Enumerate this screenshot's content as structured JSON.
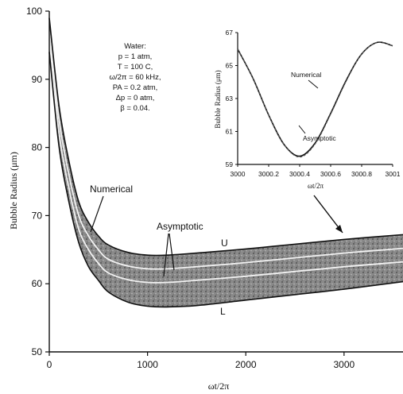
{
  "chart_data": [
    {
      "type": "line",
      "xlabel": "ωt/2π",
      "ylabel": "Bubble Radius (μm)",
      "xlim": [
        0,
        3600
      ],
      "ylim": [
        50,
        100
      ],
      "x_ticks": [
        "0",
        "1000",
        "2000",
        "3000"
      ],
      "y_ticks": [
        "50",
        "60",
        "70",
        "80",
        "90",
        "100"
      ],
      "series": [
        {
          "x": [
            0,
            100,
            200,
            300,
            400,
            500,
            600,
            800,
            1000,
            1200,
            1500,
            2000,
            2500,
            3000,
            3600
          ],
          "y": [
            99,
            86,
            78,
            72,
            69,
            67,
            65.7,
            64.6,
            64.2,
            64.2,
            64.5,
            65.1,
            65.8,
            66.5,
            67.2
          ]
        },
        {
          "x": [
            0,
            100,
            200,
            300,
            400,
            500,
            600,
            800,
            1000,
            1200,
            1500,
            2000,
            2500,
            3000,
            3600
          ],
          "y": [
            94,
            80,
            72,
            66,
            62.5,
            60.5,
            58.8,
            57.3,
            56.7,
            56.6,
            56.8,
            57.6,
            58.4,
            59.2,
            60.3
          ]
        }
      ],
      "band_centerlines": [
        {
          "x": [
            0,
            100,
            200,
            300,
            400,
            500,
            600,
            800,
            1000,
            1200,
            1500,
            2000,
            2500,
            3000,
            3600
          ],
          "y": [
            97,
            84,
            76,
            70,
            67,
            65,
            63.6,
            62.6,
            62.2,
            62.2,
            62.5,
            63.1,
            63.8,
            64.5,
            65.2
          ]
        },
        {
          "x": [
            0,
            100,
            200,
            300,
            400,
            500,
            600,
            800,
            1000,
            1200,
            1500,
            2000,
            2500,
            3000,
            3600
          ],
          "y": [
            96,
            82,
            74,
            68,
            65,
            63,
            61.6,
            60.6,
            60.2,
            60.2,
            60.5,
            61.1,
            61.8,
            62.5,
            63.2
          ]
        }
      ],
      "annotations": {
        "numerical": "Numerical",
        "asymptotic": "Asymptotic",
        "upper": "U",
        "lower": "L"
      },
      "parameters": [
        "Water:",
        "p = 1 atm,",
        "T = 100 C,",
        "ω/2π = 60 kHz,",
        "PA = 0.2 atm,",
        "Δp = 0 atm,",
        "β = 0.04."
      ]
    },
    {
      "type": "line",
      "xlabel": "ωt/2π",
      "ylabel": "Bubble Radius (μm)",
      "xlim": [
        3000,
        3001
      ],
      "ylim": [
        59,
        67
      ],
      "x_ticks": [
        "3000",
        "3000.2",
        "3000.4",
        "3000.6",
        "3000.8",
        "3001"
      ],
      "y_ticks": [
        "59",
        "61",
        "63",
        "65",
        "67"
      ],
      "series": [
        {
          "name": "Numerical",
          "x": [
            3000,
            3000.1,
            3000.2,
            3000.3,
            3000.4,
            3000.5,
            3000.6,
            3000.7,
            3000.8,
            3000.9,
            3001
          ],
          "y": [
            66.0,
            64.2,
            62.0,
            60.2,
            59.5,
            60.3,
            62.1,
            64.1,
            65.7,
            66.4,
            66.2
          ]
        },
        {
          "name": "Asymptotic",
          "x": [
            3000,
            3000.1,
            3000.2,
            3000.3,
            3000.4,
            3000.5,
            3000.6,
            3000.7,
            3000.8,
            3000.9,
            3001
          ],
          "y": [
            66.0,
            64.2,
            62.0,
            60.2,
            59.45,
            60.25,
            62.05,
            64.05,
            65.7,
            66.4,
            66.2
          ]
        }
      ]
    }
  ]
}
